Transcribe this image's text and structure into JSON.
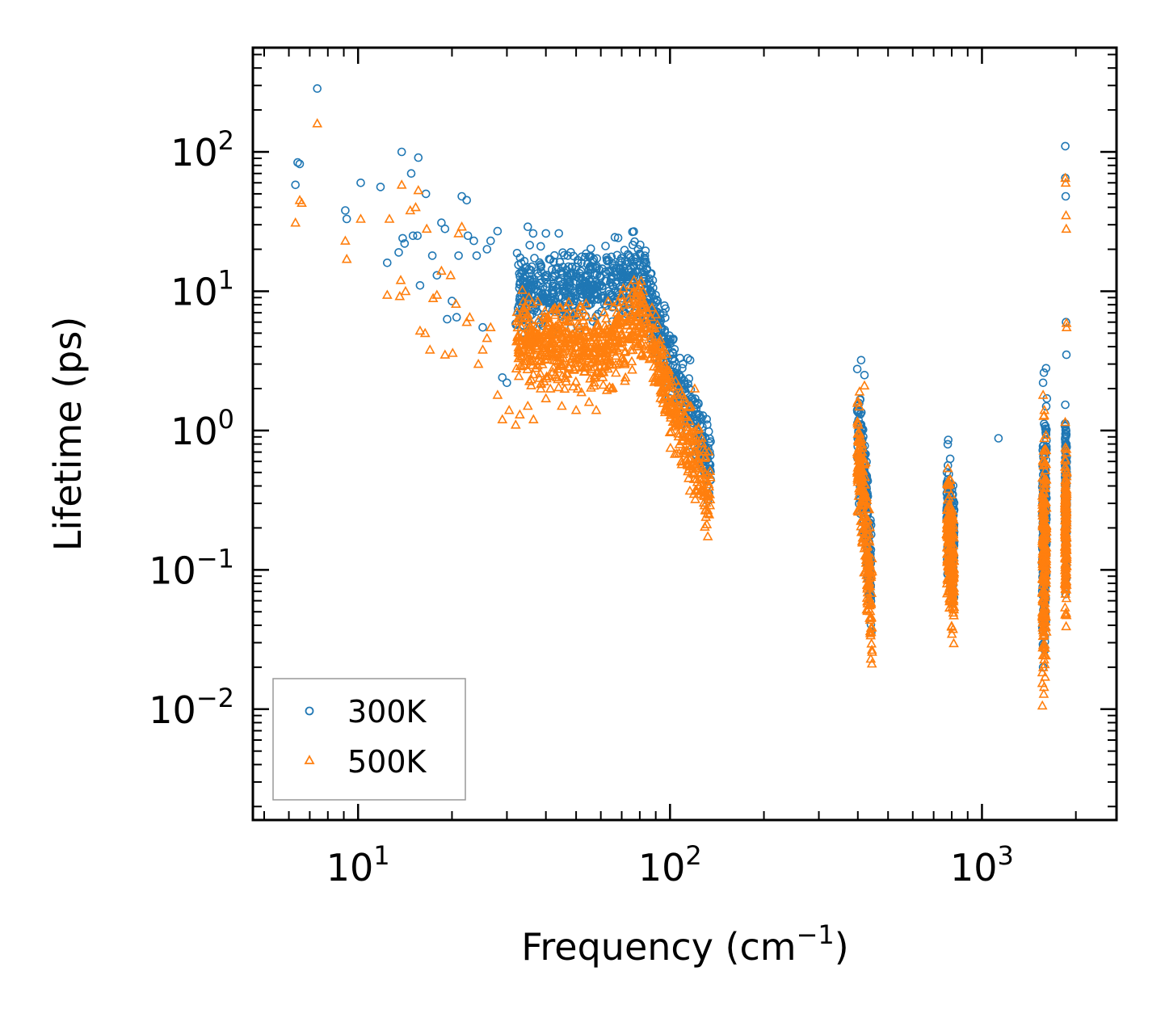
{
  "chart_data": {
    "type": "scatter",
    "xscale": "log",
    "yscale": "log",
    "xlim": [
      4.6,
      2700
    ],
    "ylim": [
      0.0016,
      560
    ],
    "xlabel": "Frequency (cm",
    "xlabel_sup": "−1",
    "xlabel_end": ")",
    "ylabel": "Lifetime (ps)",
    "legend_position": "lower-left",
    "x_ticks": [
      {
        "value": 10,
        "base": "10",
        "exp": "1"
      },
      {
        "value": 100,
        "base": "10",
        "exp": "2"
      },
      {
        "value": 1000,
        "base": "10",
        "exp": "3"
      }
    ],
    "y_ticks": [
      {
        "value": 0.01,
        "base": "10",
        "exp": "−2"
      },
      {
        "value": 0.1,
        "base": "10",
        "exp": "−1"
      },
      {
        "value": 1,
        "base": "10",
        "exp": "0"
      },
      {
        "value": 10,
        "base": "10",
        "exp": "1"
      },
      {
        "value": 100,
        "base": "10",
        "exp": "2"
      }
    ],
    "series": [
      {
        "name": "300K",
        "marker": "circle",
        "color": "#1f77b4",
        "points": [
          [
            6.3,
            58
          ],
          [
            6.4,
            84
          ],
          [
            6.5,
            82
          ],
          [
            7.4,
            285
          ],
          [
            9.1,
            38
          ],
          [
            9.2,
            33
          ],
          [
            10.2,
            60
          ],
          [
            11.8,
            56
          ],
          [
            12.4,
            16
          ],
          [
            13.5,
            19
          ],
          [
            13.8,
            100
          ],
          [
            13.9,
            24
          ],
          [
            14.1,
            22
          ],
          [
            14.8,
            70
          ],
          [
            15.0,
            25
          ],
          [
            15.5,
            25
          ],
          [
            15.6,
            91
          ],
          [
            15.8,
            11
          ],
          [
            16.5,
            50
          ],
          [
            17.3,
            18
          ],
          [
            17.9,
            13
          ],
          [
            18.5,
            31
          ],
          [
            19.0,
            28
          ],
          [
            19.3,
            6.3
          ],
          [
            20.0,
            8.5
          ],
          [
            20.7,
            6.5
          ],
          [
            21.0,
            18
          ],
          [
            21.5,
            48
          ],
          [
            22.3,
            45
          ],
          [
            22.5,
            25
          ],
          [
            23.5,
            23
          ],
          [
            24.0,
            18
          ],
          [
            25.1,
            5.5
          ],
          [
            25.9,
            20
          ],
          [
            26.6,
            23
          ],
          [
            28.0,
            27
          ],
          [
            29.0,
            2.4
          ],
          [
            30.0,
            2.2
          ],
          [
            32.5,
            7
          ],
          [
            33.5,
            14
          ],
          [
            35.0,
            29
          ],
          [
            36.4,
            26
          ],
          [
            38.5,
            21
          ],
          [
            40.0,
            26
          ],
          [
            41.0,
            17
          ],
          [
            44.0,
            26
          ],
          [
            47.0,
            18
          ],
          [
            52.0,
            16
          ],
          [
            56.5,
            15
          ],
          [
            63.5,
            14
          ],
          [
            71.0,
            13
          ],
          [
            79.0,
            20
          ],
          [
            82.0,
            15
          ],
          [
            88.0,
            7
          ],
          [
            90.0,
            6.5
          ],
          [
            95.0,
            4.5
          ],
          [
            100.0,
            3.5
          ],
          [
            104.0,
            2.6
          ],
          [
            110.0,
            3.0
          ],
          [
            114.0,
            3.3
          ],
          [
            116.0,
            3.2
          ],
          [
            120.0,
            1.6
          ],
          [
            126.0,
            0.9
          ],
          [
            130.0,
            0.75
          ],
          [
            133.0,
            0.58
          ],
          [
            134.5,
            0.52
          ],
          [
            410,
            3.2
          ],
          [
            420,
            2.5
          ],
          [
            430,
            0.2
          ],
          [
            440,
            0.09
          ],
          [
            1130,
            0.88
          ],
          [
            1570,
            2.2
          ],
          [
            1580,
            2.6
          ],
          [
            1605,
            2.8
          ],
          [
            1615,
            1.7
          ],
          [
            1850,
            110
          ],
          [
            1850,
            65
          ],
          [
            1855,
            48
          ],
          [
            1860,
            6
          ],
          [
            1865,
            3.5
          ]
        ]
      },
      {
        "name": "500K",
        "marker": "triangle",
        "color": "#ff7f0e",
        "points": [
          [
            6.3,
            31
          ],
          [
            6.5,
            45
          ],
          [
            6.6,
            43
          ],
          [
            7.4,
            160
          ],
          [
            9.1,
            23
          ],
          [
            9.2,
            17
          ],
          [
            10.2,
            33
          ],
          [
            12.4,
            9.4
          ],
          [
            12.6,
            33
          ],
          [
            13.6,
            9.2
          ],
          [
            13.7,
            12
          ],
          [
            13.8,
            58
          ],
          [
            14.2,
            10
          ],
          [
            14.7,
            38
          ],
          [
            15.3,
            40
          ],
          [
            15.6,
            53
          ],
          [
            15.8,
            5.2
          ],
          [
            16.4,
            5.0
          ],
          [
            16.6,
            28
          ],
          [
            17.0,
            3.8
          ],
          [
            17.4,
            8.9
          ],
          [
            17.9,
            9.4
          ],
          [
            18.5,
            14
          ],
          [
            19.0,
            3.5
          ],
          [
            19.8,
            13
          ],
          [
            20.1,
            3.6
          ],
          [
            20.6,
            8.1
          ],
          [
            21.0,
            26
          ],
          [
            21.5,
            29
          ],
          [
            22.3,
            6
          ],
          [
            22.8,
            6.5
          ],
          [
            24.3,
            3
          ],
          [
            25.1,
            3.8
          ],
          [
            25.9,
            4.6
          ],
          [
            26.6,
            5.5
          ],
          [
            28.0,
            1.8
          ],
          [
            29.0,
            1.2
          ],
          [
            30.5,
            1.4
          ],
          [
            32.0,
            1.1
          ],
          [
            33.0,
            1.3
          ],
          [
            35.0,
            1.5
          ],
          [
            36.5,
            1.2
          ],
          [
            38.5,
            2.0
          ],
          [
            40.0,
            1.7
          ],
          [
            45.0,
            1.5
          ],
          [
            50.0,
            1.4
          ],
          [
            55.0,
            1.6
          ],
          [
            58.0,
            1.4
          ],
          [
            65.0,
            2.0
          ],
          [
            72.0,
            2.4
          ],
          [
            80.0,
            11
          ],
          [
            82.0,
            10
          ],
          [
            88.0,
            4
          ],
          [
            95.0,
            2.5
          ],
          [
            100.0,
            1.5
          ],
          [
            104.0,
            1.2
          ],
          [
            110.0,
            0.9
          ],
          [
            114.0,
            1.0
          ],
          [
            120.0,
            2.0
          ],
          [
            126.0,
            0.5
          ],
          [
            130.0,
            0.45
          ],
          [
            133.0,
            0.35
          ],
          [
            134.5,
            0.32
          ],
          [
            405,
            1.9
          ],
          [
            420,
            2.1
          ],
          [
            430,
            0.2
          ],
          [
            440,
            0.045
          ],
          [
            1570,
            1.8
          ],
          [
            1585,
            1.4
          ],
          [
            1850,
            65
          ],
          [
            1855,
            60
          ],
          [
            1860,
            35
          ],
          [
            1863,
            28
          ],
          [
            1865,
            5.9
          ],
          [
            1868,
            5.5
          ]
        ]
      }
    ],
    "clusters": [
      {
        "series": "300K",
        "x_range": [
          32,
          135
        ],
        "y_center_at_x": [
          [
            32,
            9
          ],
          [
            60,
            11
          ],
          [
            80,
            13
          ],
          [
            100,
            3.2
          ],
          [
            133,
            0.6
          ]
        ],
        "spread": 0.38,
        "count": 820,
        "seed": 11
      },
      {
        "series": "500K",
        "x_range": [
          32,
          135
        ],
        "y_center_at_x": [
          [
            32,
            4.5
          ],
          [
            50,
            4.0
          ],
          [
            60,
            3.5
          ],
          [
            80,
            7.0
          ],
          [
            100,
            1.7
          ],
          [
            133,
            0.35
          ]
        ],
        "spread": 0.42,
        "count": 900,
        "seed": 23
      },
      {
        "series": "300K",
        "x_range": [
          398,
          442
        ],
        "y_center_at_x": [
          [
            398,
            1.2
          ],
          [
            410,
            0.6
          ],
          [
            425,
            0.3
          ],
          [
            442,
            0.09
          ]
        ],
        "spread": 0.55,
        "count": 220,
        "seed": 31
      },
      {
        "series": "500K",
        "x_range": [
          398,
          445
        ],
        "y_center_at_x": [
          [
            398,
            0.8
          ],
          [
            410,
            0.4
          ],
          [
            425,
            0.15
          ],
          [
            445,
            0.045
          ]
        ],
        "spread": 0.6,
        "count": 220,
        "seed": 37
      },
      {
        "series": "300K",
        "x_range": [
          770,
          815
        ],
        "y_center_at_x": [
          [
            770,
            0.3
          ],
          [
            790,
            0.2
          ],
          [
            815,
            0.15
          ]
        ],
        "spread": 0.6,
        "count": 200,
        "seed": 41
      },
      {
        "series": "500K",
        "x_range": [
          770,
          815
        ],
        "y_center_at_x": [
          [
            770,
            0.2
          ],
          [
            790,
            0.13
          ],
          [
            815,
            0.1
          ]
        ],
        "spread": 0.65,
        "count": 220,
        "seed": 43
      },
      {
        "series": "300K",
        "x_range": [
          1560,
          1610
        ],
        "y_center_at_x": [
          [
            1560,
            0.15
          ],
          [
            1590,
            0.2
          ],
          [
            1610,
            0.3
          ]
        ],
        "spread": 1.15,
        "count": 220,
        "seed": 53
      },
      {
        "series": "500K",
        "x_range": [
          1560,
          1610
        ],
        "y_center_at_x": [
          [
            1560,
            0.1
          ],
          [
            1590,
            0.15
          ],
          [
            1610,
            0.2
          ]
        ],
        "spread": 1.2,
        "count": 240,
        "seed": 59
      },
      {
        "series": "300K",
        "x_range": [
          1845,
          1870
        ],
        "y_center_at_x": [
          [
            1845,
            0.3
          ],
          [
            1870,
            0.3
          ]
        ],
        "spread": 0.8,
        "count": 160,
        "seed": 61
      },
      {
        "series": "500K",
        "x_range": [
          1845,
          1870
        ],
        "y_center_at_x": [
          [
            1845,
            0.2
          ],
          [
            1870,
            0.2
          ]
        ],
        "spread": 0.85,
        "count": 170,
        "seed": 67
      }
    ]
  }
}
